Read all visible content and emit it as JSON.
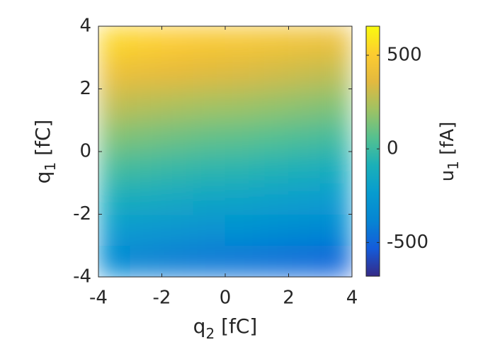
{
  "chart_data": {
    "type": "heatmap",
    "xlabel": {
      "base": "q",
      "sub": "2",
      "rest": " [fC]"
    },
    "ylabel": {
      "base": "q",
      "sub": "1",
      "rest": " [fC]"
    },
    "colorbar_label": {
      "base": "u",
      "sub": "1",
      "rest": " [fA]"
    },
    "xbins": [
      -4,
      -3,
      -2,
      -1,
      0,
      1,
      2,
      3,
      4
    ],
    "ybins": [
      -4,
      -3,
      -2,
      -1,
      0,
      1,
      2,
      3,
      4
    ],
    "z": [
      [
        -370,
        -390,
        -410,
        -430,
        -440,
        -460,
        -480,
        -500
      ],
      [
        -240,
        -260,
        -280,
        -300,
        -310,
        -330,
        -350,
        -370
      ],
      [
        -110,
        -130,
        -150,
        -170,
        -180,
        -200,
        -220,
        -240
      ],
      [
        20,
        0,
        -20,
        -40,
        -50,
        -70,
        -90,
        -110
      ],
      [
        150,
        130,
        110,
        90,
        80,
        60,
        40,
        20
      ],
      [
        280,
        260,
        240,
        220,
        210,
        190,
        170,
        150
      ],
      [
        410,
        390,
        370,
        350,
        340,
        320,
        300,
        280
      ],
      [
        540,
        520,
        500,
        480,
        470,
        450,
        430,
        410
      ]
    ],
    "xlim": [
      -4,
      4
    ],
    "ylim": [
      -4,
      4
    ],
    "xticks": [
      -4,
      -2,
      0,
      2,
      4
    ],
    "yticks": [
      -4,
      -2,
      0,
      2,
      4
    ],
    "clim": [
      -680,
      655
    ],
    "cticks": [
      -500,
      0,
      500
    ],
    "colormap": "parula"
  }
}
